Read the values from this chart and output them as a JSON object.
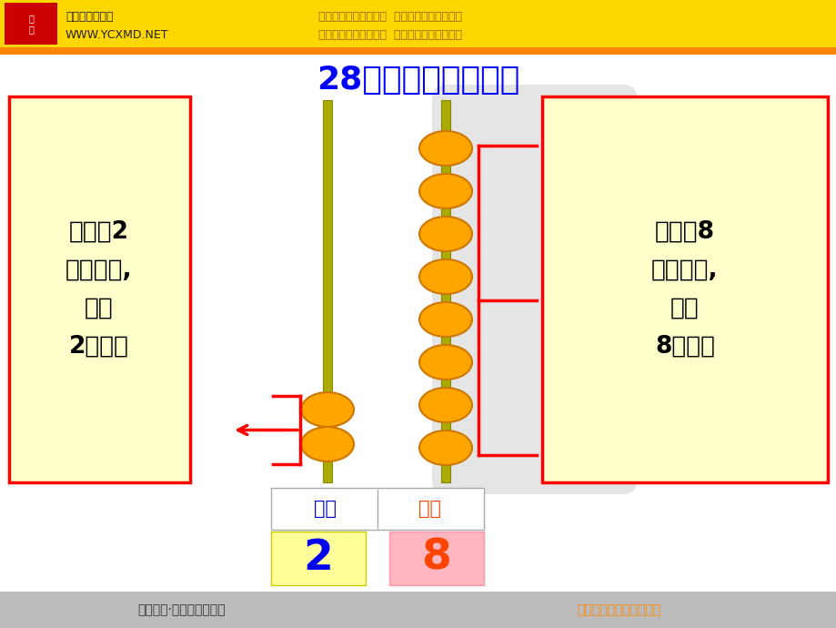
{
  "title": "28在计数器上的表示",
  "title_color": "#0000FF",
  "title_fontsize": 26,
  "bg_color": "#FFFFFF",
  "header_bg": "#FFD700",
  "header_text1": "虞城县明德小学",
  "header_text2": "WWW.YCXMD.NET",
  "header_right1": "提升现代教育技术水平  提升干部教师队伍素质",
  "header_right2": "提升明德小学教育质量  促进每位学生全面发展",
  "left_box_text": "左边的2\n在十位上,\n表示\n2个十。",
  "right_box_text": "右边的8\n在个位上,\n表示\n8个一。",
  "box_bg": "#FFFFCC",
  "box_border": "#FF0000",
  "rod_color": "#AAAA00",
  "rod_edge": "#888800",
  "bead_color": "#FFA500",
  "bead_edge": "#CC7700",
  "label_tens": "十位",
  "label_ones": "个位",
  "label_tens_color": "#0000CC",
  "label_ones_color": "#FF4400",
  "num2_bg": "#FFFF99",
  "num8_bg": "#FFB6C1",
  "num2_color": "#0000EE",
  "num8_color": "#FF4400",
  "brace_color": "#FF0000",
  "footer_bg": "#BBBBBB",
  "footer_text": "河南商丘·虞城县明德小学",
  "footer_right": "明理。守德。储学。笃行"
}
